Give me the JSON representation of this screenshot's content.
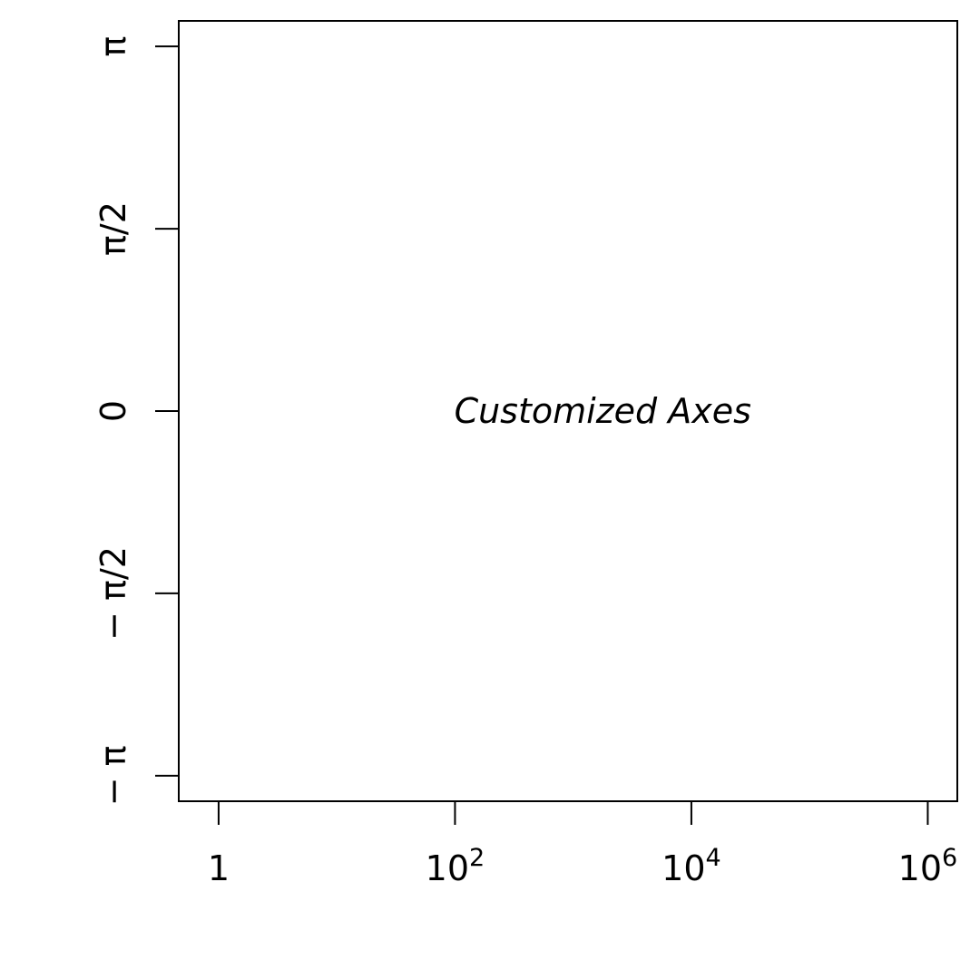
{
  "chart_data": {
    "type": "scatter",
    "title": "",
    "xlabel": "",
    "ylabel": "",
    "x_scale": "log10",
    "xlim": [
      0.46,
      1778279
    ],
    "ylim": [
      -3.3615,
      3.3615
    ],
    "x_ticks": [
      {
        "value": 1,
        "base": "1",
        "exp": ""
      },
      {
        "value": 100,
        "base": "10",
        "exp": "2"
      },
      {
        "value": 10000,
        "base": "10",
        "exp": "4"
      },
      {
        "value": 1000000,
        "base": "10",
        "exp": "6"
      }
    ],
    "y_ticks": [
      {
        "value": -3.14159,
        "label": "− π"
      },
      {
        "value": -1.5708,
        "label": "− π/2"
      },
      {
        "value": 0,
        "label": "0"
      },
      {
        "value": 1.5708,
        "label": "π/2"
      },
      {
        "value": 3.14159,
        "label": "π"
      }
    ],
    "series": [],
    "annotation": {
      "text": "Customized Axes",
      "x": 1778,
      "y": 0
    },
    "grid": false
  }
}
